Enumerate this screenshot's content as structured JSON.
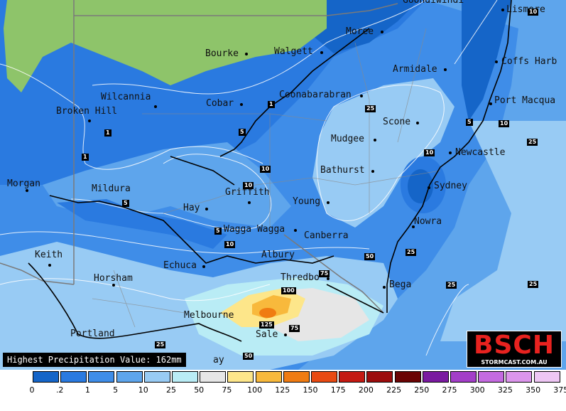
{
  "status": "Highest Precipitation Value: 162mm",
  "logo": {
    "text": "BSCH",
    "sub": "STORMCAST.COM.AU"
  },
  "cities": [
    {
      "name": "Goondiwindi"
    },
    {
      "name": "Lismore"
    },
    {
      "name": "Moree"
    },
    {
      "name": "Coffs Harb"
    },
    {
      "name": "Bourke"
    },
    {
      "name": "Walgett"
    },
    {
      "name": "Armidale"
    },
    {
      "name": "Wilcannia"
    },
    {
      "name": "Broken Hill"
    },
    {
      "name": "Cobar"
    },
    {
      "name": "Coonabarabran"
    },
    {
      "name": "Port Macqua"
    },
    {
      "name": "Scone"
    },
    {
      "name": "Mudgee"
    },
    {
      "name": "Newcastle"
    },
    {
      "name": "Bathurst"
    },
    {
      "name": "Sydney"
    },
    {
      "name": "Morgan"
    },
    {
      "name": "Mildura"
    },
    {
      "name": "Griffith"
    },
    {
      "name": "Hay"
    },
    {
      "name": "Young"
    },
    {
      "name": "Wagga Wagga"
    },
    {
      "name": "Canberra"
    },
    {
      "name": "Nowra"
    },
    {
      "name": "Keith"
    },
    {
      "name": "Albury"
    },
    {
      "name": "Echuca"
    },
    {
      "name": "Horsham"
    },
    {
      "name": "Thredbo"
    },
    {
      "name": "Bega"
    },
    {
      "name": "Melbourne"
    },
    {
      "name": "Sale"
    },
    {
      "name": "Portland"
    },
    {
      "name": "ay"
    }
  ],
  "contour_labels": [
    "10",
    "1",
    "1",
    "1",
    "5",
    "10",
    "10",
    "25",
    "5",
    "10",
    "25",
    "10",
    "5",
    "5",
    "10",
    "50",
    "25",
    "75",
    "100",
    "25",
    "25",
    "125",
    "75",
    "25",
    "50"
  ],
  "legend": {
    "colors": [
      "#1565c8",
      "#2a7ae0",
      "#3f8de8",
      "#5ea5ec",
      "#98cbf4",
      "#b9ecf5",
      "#e6e6e6",
      "#fde68a",
      "#f8b93c",
      "#f07c12",
      "#e84a12",
      "#c41a12",
      "#9c0c0c",
      "#6a0404",
      "#7a1aa0",
      "#a33ec8",
      "#c46ae0",
      "#dc95ec",
      "#eec6f4"
    ],
    "values": [
      "0",
      ".2",
      "1",
      "5",
      "10",
      "25",
      "50",
      "75",
      "100",
      "125",
      "150",
      "175",
      "200",
      "225",
      "250",
      "275",
      "300",
      "325",
      "350",
      "375"
    ]
  }
}
